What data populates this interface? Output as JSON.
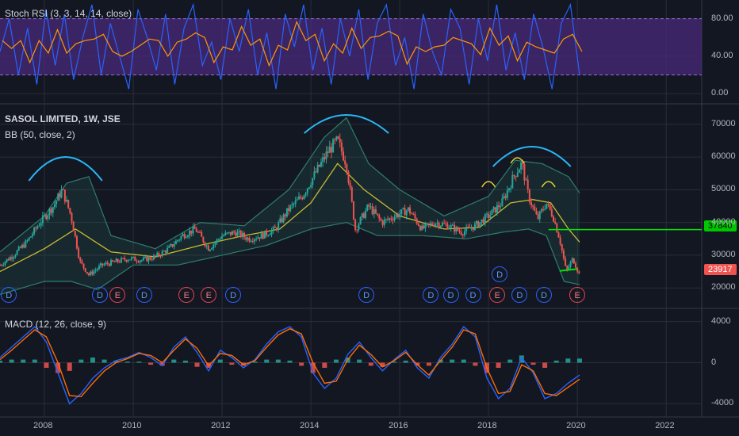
{
  "colors": {
    "background": "#131722",
    "grid": "#2a2e39",
    "rsi_fill": "#4a2a7a",
    "rsi_k": "#2962ff",
    "rsi_d": "#ff9800",
    "price_up": "#26a69a",
    "price_down": "#ef5350",
    "bb_basis": "#c9b930",
    "bb_band": "#2e7d6e",
    "annotation_arc": "#29b6f6",
    "annotation_small_arc": "#e6d22e",
    "resistance_line": "#00e600",
    "support_line": "#00e600",
    "macd_line": "#2962ff",
    "signal_line": "#ff6d00",
    "hist_pos": "#26a69a",
    "hist_neg": "#ef5350"
  },
  "legends": {
    "stoch_rsi": "Stoch RSI (3, 3, 14, 14, close)",
    "symbol": "SASOL LIMITED, 1W, JSE",
    "bb": "BB (50, close, 2)",
    "macd": "MACD (12, 26, close, 9)"
  },
  "price_tags": {
    "resistance": "37840",
    "last": "23917"
  },
  "event_labels": {
    "dividend": "D",
    "earnings": "E"
  },
  "chart_data": [
    {
      "type": "line",
      "panel": "stoch_rsi",
      "ylim": [
        -10,
        100
      ],
      "yticks": [
        "0.00",
        "40.00",
        "80.00"
      ],
      "ytick_values": [
        0,
        40,
        80
      ],
      "band": [
        20,
        80
      ],
      "series": [
        {
          "values": [
            45,
            80,
            20,
            70,
            10,
            90,
            30,
            85,
            15,
            60,
            95,
            20,
            75,
            40,
            5,
            90,
            60,
            25,
            85,
            10,
            70,
            95,
            30,
            55,
            15,
            80,
            45,
            90,
            20,
            65,
            5,
            85,
            50,
            95,
            25,
            70,
            10,
            80,
            40,
            90,
            15,
            75,
            95,
            30,
            60,
            5,
            85,
            45,
            20,
            90,
            70,
            10,
            80,
            35,
            95,
            25,
            65,
            15,
            85,
            50,
            5,
            75,
            95,
            20
          ]
        }
      ]
    },
    {
      "type": "line",
      "panel": "price",
      "xlim": [
        2007.0,
        2022.8
      ],
      "ylim": [
        14000,
        76000
      ],
      "yticks": [
        "20000",
        "30000",
        "40000",
        "50000",
        "60000",
        "70000"
      ],
      "ytick_values": [
        20000,
        30000,
        40000,
        50000,
        60000,
        70000
      ],
      "xticks": [
        "2008",
        "2010",
        "2012",
        "2014",
        "2016",
        "2018",
        "2020",
        "2022"
      ],
      "xtick_values": [
        2008,
        2010,
        2012,
        2014,
        2016,
        2018,
        2020,
        2022
      ],
      "series": [
        {
          "name": "SASOL LIMITED",
          "x": [
            2007.0,
            2007.3,
            2007.6,
            2007.9,
            2008.2,
            2008.4,
            2008.6,
            2008.8,
            2009.0,
            2009.3,
            2009.6,
            2009.9,
            2010.2,
            2010.5,
            2010.8,
            2011.1,
            2011.4,
            2011.7,
            2012.0,
            2012.3,
            2012.6,
            2012.9,
            2013.2,
            2013.5,
            2013.8,
            2014.1,
            2014.4,
            2014.6,
            2014.8,
            2015.0,
            2015.3,
            2015.6,
            2015.9,
            2016.2,
            2016.5,
            2016.8,
            2017.1,
            2017.4,
            2017.7,
            2018.0,
            2018.3,
            2018.6,
            2018.75,
            2018.9,
            2019.1,
            2019.3,
            2019.45,
            2019.6,
            2019.75,
            2019.9,
            2020.05
          ],
          "y": [
            27000,
            30000,
            34000,
            40000,
            45000,
            50000,
            42000,
            28000,
            24000,
            27000,
            28000,
            29000,
            28500,
            29500,
            32000,
            36000,
            38000,
            32000,
            36000,
            37000,
            35000,
            36000,
            38000,
            44000,
            48000,
            55000,
            62000,
            65000,
            58000,
            38000,
            45000,
            40000,
            42000,
            44000,
            38000,
            40000,
            39000,
            37000,
            39000,
            42000,
            46000,
            55000,
            58000,
            48000,
            41000,
            46000,
            42000,
            35000,
            25000,
            29000,
            23917
          ]
        },
        {
          "name": "BB basis",
          "x": [
            2007.0,
            2008.0,
            2008.7,
            2009.5,
            2010.5,
            2011.5,
            2012.5,
            2013.3,
            2014.0,
            2014.6,
            2015.2,
            2016.0,
            2017.0,
            2017.8,
            2018.5,
            2019.0,
            2019.4,
            2019.8,
            2020.05
          ],
          "y": [
            25000,
            32000,
            38000,
            31000,
            29500,
            33000,
            36000,
            38000,
            46000,
            58000,
            50000,
            42000,
            38000,
            38500,
            46000,
            47000,
            46000,
            38000,
            34000
          ]
        },
        {
          "name": "BB upper",
          "x": [
            2007.0,
            2008.0,
            2008.5,
            2009.0,
            2009.5,
            2010.5,
            2011.5,
            2012.5,
            2013.5,
            2014.3,
            2014.8,
            2015.3,
            2016.0,
            2017.0,
            2018.0,
            2018.6,
            2019.2,
            2019.8,
            2020.05
          ],
          "y": [
            31000,
            42000,
            52000,
            54000,
            36000,
            32000,
            40000,
            39000,
            50000,
            66000,
            72000,
            58000,
            50000,
            42000,
            48000,
            59000,
            58000,
            54000,
            49000
          ]
        },
        {
          "name": "BB lower",
          "x": [
            2007.0,
            2008.0,
            2008.6,
            2009.2,
            2010.0,
            2011.0,
            2012.0,
            2013.0,
            2014.0,
            2014.8,
            2015.5,
            2016.5,
            2017.5,
            2018.3,
            2018.9,
            2019.3,
            2019.7,
            2020.05
          ],
          "y": [
            18000,
            22000,
            22000,
            19500,
            27000,
            27000,
            30000,
            33000,
            38000,
            40000,
            36000,
            36000,
            35000,
            37000,
            38000,
            36000,
            22000,
            21000
          ]
        }
      ],
      "horizontal_lines": [
        37840
      ]
    },
    {
      "type": "line",
      "panel": "macd",
      "ylim": [
        -5200,
        5200
      ],
      "yticks": [
        "4000",
        "0",
        "-4000"
      ],
      "ytick_values": [
        4000,
        0,
        -4000
      ],
      "series": [
        {
          "values": [
            500,
            1500,
            2500,
            3500,
            2000,
            -1000,
            -4000,
            -3000,
            -1500,
            -500,
            200,
            500,
            1000,
            500,
            -300,
            1500,
            2500,
            1000,
            -800,
            1200,
            500,
            -500,
            300,
            1800,
            3000,
            3500,
            2500,
            -1000,
            -2500,
            -1500,
            800,
            2000,
            500,
            -800,
            300,
            1200,
            -500,
            -1500,
            500,
            1800,
            3500,
            2500,
            -1500,
            -3500,
            -2500,
            500,
            -1000,
            -3500,
            -3000,
            -2000,
            -1200
          ]
        },
        {
          "values": [
            300,
            1200,
            2200,
            3200,
            2500,
            0,
            -3200,
            -3300,
            -2000,
            -800,
            0,
            400,
            900,
            700,
            0,
            1200,
            2300,
            1400,
            -300,
            900,
            700,
            -200,
            200,
            1500,
            2700,
            3300,
            2800,
            0,
            -2000,
            -1800,
            300,
            1700,
            800,
            -400,
            200,
            1000,
            -200,
            -1200,
            200,
            1500,
            3200,
            2800,
            -500,
            -3000,
            -2800,
            -200,
            -800,
            -3000,
            -3200,
            -2400,
            -1600
          ]
        }
      ]
    }
  ]
}
